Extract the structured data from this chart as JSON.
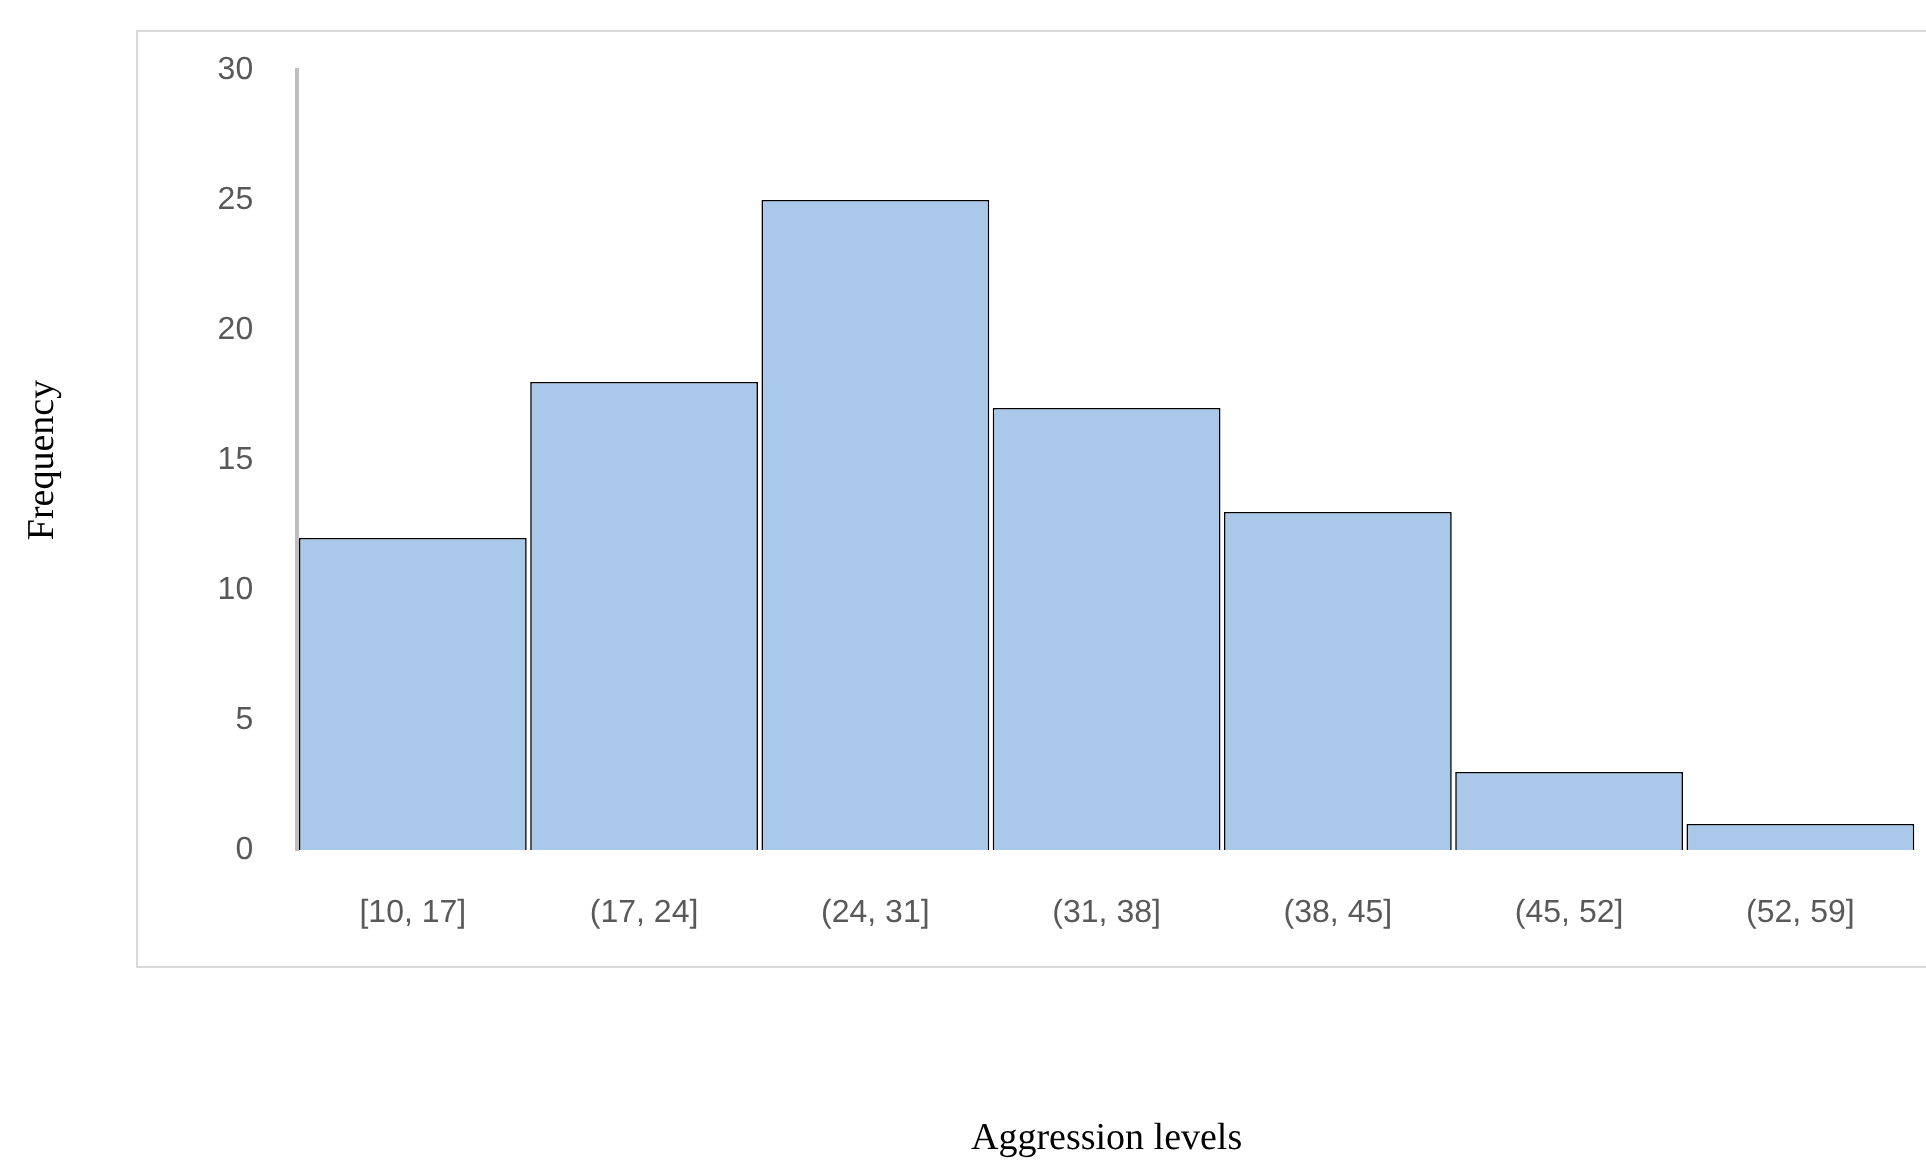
{
  "chart_data": {
    "type": "bar",
    "xlabel": "Aggression levels",
    "ylabel": "Frequency",
    "categories": [
      "[10, 17]",
      "(17, 24]",
      "(24, 31]",
      "(31, 38]",
      "(38, 45]",
      "(45, 52]",
      "(52, 59]"
    ],
    "values": [
      12,
      18,
      25,
      17,
      13,
      3,
      1
    ],
    "color": "#a9c8ea",
    "ylim": [
      0,
      30
    ],
    "yticks": [
      0,
      5,
      10,
      15,
      20,
      25,
      30
    ]
  }
}
